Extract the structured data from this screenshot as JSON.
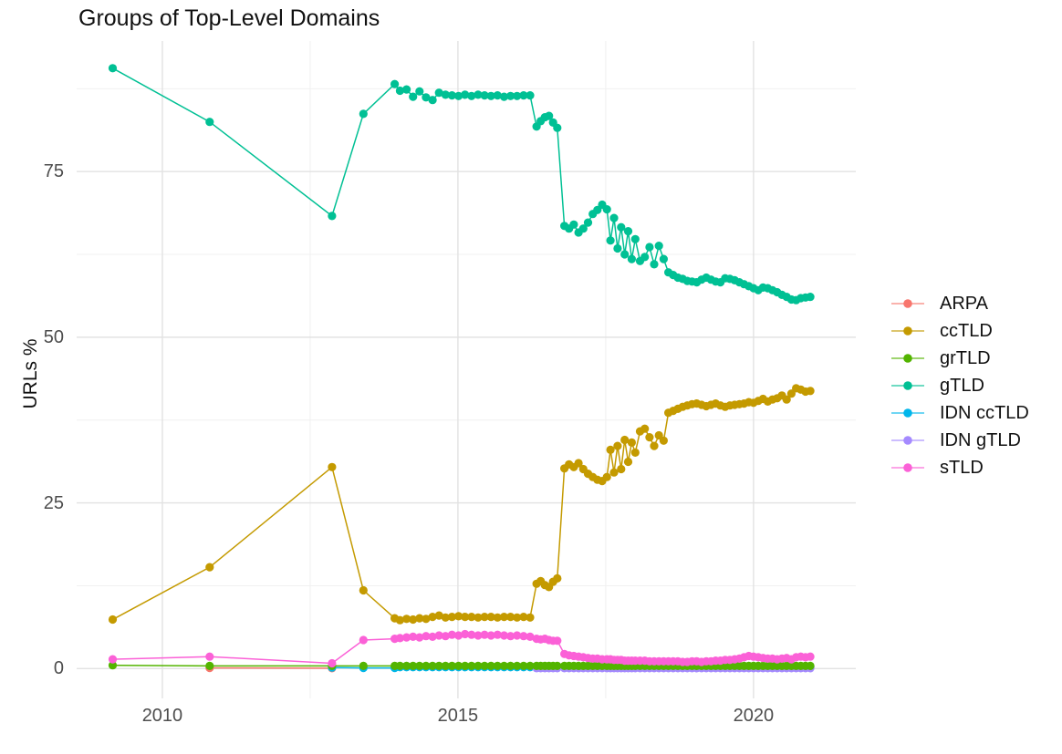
{
  "title": "Groups of Top-Level Domains",
  "y_axis": {
    "label": "URLs %",
    "tick_labels": [
      "0",
      "25",
      "50",
      "75"
    ],
    "tick_values": [
      0,
      25,
      50,
      75
    ]
  },
  "x_axis": {
    "tick_labels": [
      "2010",
      "2015",
      "2020"
    ],
    "tick_values": [
      2010,
      2015,
      2020
    ]
  },
  "grid": {
    "major_color": "#e2e2e2",
    "minor_color": "#f0f0f0",
    "y_minor": [
      12.5,
      37.5,
      62.5,
      87.5
    ],
    "x_minor": [
      2012.5,
      2017.5
    ]
  },
  "chart_data": {
    "type": "line",
    "title": "Groups of Top-Level Domains",
    "xlabel": "",
    "ylabel": "URLs %",
    "legend_position": "right",
    "xlim": [
      2008.55,
      2021.73
    ],
    "ylim": [
      -4.5,
      94.7
    ],
    "x": [
      2009.16,
      2010.8,
      2012.87,
      2013.4,
      2013.93,
      2014.02,
      2014.13,
      2014.24,
      2014.35,
      2014.46,
      2014.57,
      2014.68,
      2014.79,
      2014.9,
      2015.01,
      2015.12,
      2015.23,
      2015.34,
      2015.45,
      2015.56,
      2015.67,
      2015.78,
      2015.89,
      2016.0,
      2016.11,
      2016.22,
      2016.33,
      2016.4,
      2016.47,
      2016.54,
      2016.61,
      2016.68,
      2016.8,
      2016.88,
      2016.96,
      2017.04,
      2017.12,
      2017.2,
      2017.28,
      2017.36,
      2017.44,
      2017.52,
      2017.58,
      2017.64,
      2017.7,
      2017.76,
      2017.82,
      2017.88,
      2017.94,
      2018.0,
      2018.08,
      2018.16,
      2018.24,
      2018.32,
      2018.4,
      2018.48,
      2018.56,
      2018.64,
      2018.72,
      2018.8,
      2018.88,
      2018.96,
      2019.04,
      2019.12,
      2019.2,
      2019.28,
      2019.36,
      2019.44,
      2019.52,
      2019.6,
      2019.68,
      2019.76,
      2019.84,
      2019.92,
      2020.0,
      2020.08,
      2020.16,
      2020.24,
      2020.32,
      2020.4,
      2020.48,
      2020.56,
      2020.64,
      2020.72,
      2020.8,
      2020.88,
      2020.96
    ],
    "draw_order": [
      0,
      4,
      5,
      2,
      1,
      3,
      6
    ],
    "series": [
      {
        "name": "ARPA",
        "color": "#F8766D",
        "values": [
          null,
          0.1,
          0.05,
          null,
          null,
          null,
          null,
          null,
          null,
          null,
          null,
          null,
          null,
          null,
          null,
          null,
          null,
          null,
          null,
          null,
          null,
          null,
          null,
          null,
          null,
          null,
          null,
          null,
          null,
          null,
          null,
          null,
          null,
          null,
          null,
          null,
          null,
          null,
          null,
          null,
          null,
          null,
          null,
          null,
          null,
          null,
          null,
          null,
          null,
          null,
          null,
          null,
          null,
          null,
          null,
          null,
          null,
          null,
          null,
          null,
          null,
          null,
          null,
          null,
          null,
          null,
          null,
          null,
          null,
          null,
          null,
          null,
          null,
          null,
          null,
          null,
          null,
          null,
          null,
          null,
          null,
          null,
          null,
          null,
          null,
          null,
          null
        ]
      },
      {
        "name": "ccTLD",
        "color": "#C49A00",
        "values": [
          7.4,
          15.3,
          30.4,
          11.8,
          7.6,
          7.3,
          7.5,
          7.4,
          7.6,
          7.5,
          7.8,
          8.0,
          7.7,
          7.8,
          7.9,
          7.8,
          7.8,
          7.7,
          7.8,
          7.8,
          7.7,
          7.8,
          7.8,
          7.7,
          7.8,
          7.7,
          12.8,
          13.2,
          12.6,
          12.3,
          13.1,
          13.6,
          30.2,
          30.8,
          30.4,
          31.0,
          30.1,
          29.4,
          28.9,
          28.5,
          28.3,
          28.9,
          33.0,
          29.6,
          33.6,
          30.1,
          34.5,
          31.2,
          34.1,
          32.6,
          35.8,
          36.2,
          34.9,
          33.6,
          35.2,
          34.4,
          38.6,
          38.9,
          39.2,
          39.5,
          39.7,
          39.9,
          40.0,
          39.8,
          39.6,
          39.8,
          40.0,
          39.7,
          39.5,
          39.7,
          39.8,
          39.9,
          40.0,
          40.2,
          40.1,
          40.4,
          40.7,
          40.3,
          40.6,
          40.8,
          41.2,
          40.6,
          41.5,
          42.3,
          42.1,
          41.8,
          41.9
        ]
      },
      {
        "name": "grTLD",
        "color": "#53B400",
        "values": [
          0.5,
          0.4,
          0.4,
          0.4,
          0.4,
          0.4,
          0.4,
          0.4,
          0.4,
          0.4,
          0.4,
          0.4,
          0.4,
          0.4,
          0.4,
          0.4,
          0.4,
          0.4,
          0.4,
          0.4,
          0.4,
          0.4,
          0.4,
          0.4,
          0.4,
          0.4,
          0.4,
          0.4,
          0.4,
          0.4,
          0.4,
          0.4,
          0.4,
          0.4,
          0.4,
          0.4,
          0.4,
          0.4,
          0.4,
          0.4,
          0.4,
          0.4,
          0.4,
          0.4,
          0.4,
          0.4,
          0.4,
          0.4,
          0.4,
          0.4,
          0.4,
          0.4,
          0.4,
          0.4,
          0.4,
          0.4,
          0.4,
          0.4,
          0.4,
          0.4,
          0.4,
          0.4,
          0.4,
          0.4,
          0.4,
          0.4,
          0.4,
          0.4,
          0.4,
          0.4,
          0.4,
          0.4,
          0.4,
          0.4,
          0.4,
          0.4,
          0.4,
          0.4,
          0.4,
          0.4,
          0.4,
          0.4,
          0.4,
          0.4,
          0.4,
          0.4,
          0.4
        ]
      },
      {
        "name": "gTLD",
        "color": "#00C094",
        "values": [
          90.6,
          82.5,
          68.3,
          83.7,
          88.2,
          87.2,
          87.4,
          86.3,
          87.1,
          86.2,
          85.8,
          86.9,
          86.6,
          86.5,
          86.4,
          86.6,
          86.4,
          86.6,
          86.5,
          86.4,
          86.5,
          86.3,
          86.4,
          86.4,
          86.5,
          86.5,
          81.8,
          82.6,
          83.2,
          83.4,
          82.4,
          81.6,
          66.8,
          66.4,
          67.0,
          65.8,
          66.4,
          67.3,
          68.6,
          69.2,
          70.0,
          69.3,
          64.6,
          68.0,
          63.4,
          66.6,
          62.5,
          66.0,
          61.8,
          64.8,
          61.5,
          62.1,
          63.6,
          61.0,
          63.8,
          61.8,
          59.8,
          59.4,
          59.0,
          58.8,
          58.5,
          58.4,
          58.3,
          58.7,
          59.0,
          58.7,
          58.4,
          58.3,
          58.9,
          58.8,
          58.6,
          58.3,
          58.0,
          57.7,
          57.4,
          57.1,
          57.5,
          57.4,
          57.1,
          56.8,
          56.4,
          56.1,
          55.7,
          55.6,
          55.9,
          56.0,
          56.1
        ]
      },
      {
        "name": "IDN ccTLD",
        "color": "#00B6EB",
        "values": [
          null,
          null,
          0.15,
          0.1,
          0.1,
          0.2,
          0.2,
          0.2,
          0.2,
          0.2,
          0.2,
          0.2,
          0.2,
          0.2,
          0.2,
          0.2,
          0.2,
          0.2,
          0.2,
          0.2,
          0.2,
          0.2,
          0.2,
          0.2,
          0.2,
          0.2,
          0.2,
          0.2,
          0.2,
          0.2,
          0.2,
          0.2,
          0.2,
          0.2,
          0.2,
          0.2,
          0.2,
          0.2,
          0.2,
          0.2,
          0.2,
          0.2,
          0.2,
          0.2,
          0.2,
          0.2,
          0.2,
          0.2,
          0.2,
          0.2,
          0.2,
          0.2,
          0.2,
          0.2,
          0.2,
          0.2,
          0.2,
          0.2,
          0.2,
          0.2,
          0.2,
          0.2,
          0.2,
          0.2,
          0.2,
          0.2,
          0.2,
          0.2,
          0.2,
          0.2,
          0.2,
          0.2,
          0.2,
          0.2,
          0.2,
          0.2,
          0.2,
          0.2,
          0.2,
          0.2,
          0.2,
          0.2,
          0.2,
          0.2,
          0.2,
          0.2,
          0.2
        ]
      },
      {
        "name": "IDN gTLD",
        "color": "#A58AFF",
        "values": [
          null,
          null,
          null,
          null,
          null,
          null,
          null,
          null,
          null,
          null,
          null,
          null,
          null,
          null,
          null,
          null,
          null,
          null,
          null,
          null,
          null,
          null,
          null,
          null,
          null,
          null,
          0.05,
          0.05,
          0.05,
          0.05,
          0.05,
          0.05,
          0.05,
          0.05,
          0.05,
          0.05,
          0.05,
          0.05,
          0.05,
          0.05,
          0.05,
          0.05,
          0.05,
          0.05,
          0.05,
          0.05,
          0.05,
          0.05,
          0.05,
          0.05,
          0.05,
          0.05,
          0.05,
          0.05,
          0.05,
          0.05,
          0.05,
          0.05,
          0.05,
          0.05,
          0.05,
          0.05,
          0.05,
          0.05,
          0.05,
          0.05,
          0.05,
          0.05,
          0.05,
          0.05,
          0.05,
          0.05,
          0.05,
          0.05,
          0.05,
          0.05,
          0.05,
          0.05,
          0.05,
          0.05,
          0.05,
          0.05,
          0.05,
          0.05,
          0.05,
          0.05,
          0.05
        ]
      },
      {
        "name": "sTLD",
        "color": "#FB61D7",
        "values": [
          1.4,
          1.8,
          0.8,
          4.3,
          4.5,
          4.6,
          4.7,
          4.8,
          4.7,
          4.9,
          4.8,
          5.0,
          4.9,
          5.1,
          5.0,
          5.2,
          5.1,
          5.0,
          5.1,
          5.0,
          5.1,
          5.0,
          4.9,
          5.0,
          4.9,
          4.8,
          4.5,
          4.4,
          4.5,
          4.3,
          4.2,
          4.2,
          2.2,
          2.0,
          1.9,
          1.8,
          1.7,
          1.6,
          1.5,
          1.5,
          1.4,
          1.4,
          1.4,
          1.3,
          1.3,
          1.3,
          1.2,
          1.2,
          1.2,
          1.2,
          1.2,
          1.2,
          1.1,
          1.1,
          1.1,
          1.1,
          1.1,
          1.1,
          1.1,
          1.0,
          1.0,
          1.1,
          1.1,
          1.0,
          1.1,
          1.1,
          1.2,
          1.2,
          1.3,
          1.3,
          1.4,
          1.5,
          1.7,
          1.9,
          1.8,
          1.7,
          1.6,
          1.5,
          1.5,
          1.4,
          1.5,
          1.6,
          1.4,
          1.7,
          1.8,
          1.7,
          1.8
        ]
      }
    ]
  }
}
